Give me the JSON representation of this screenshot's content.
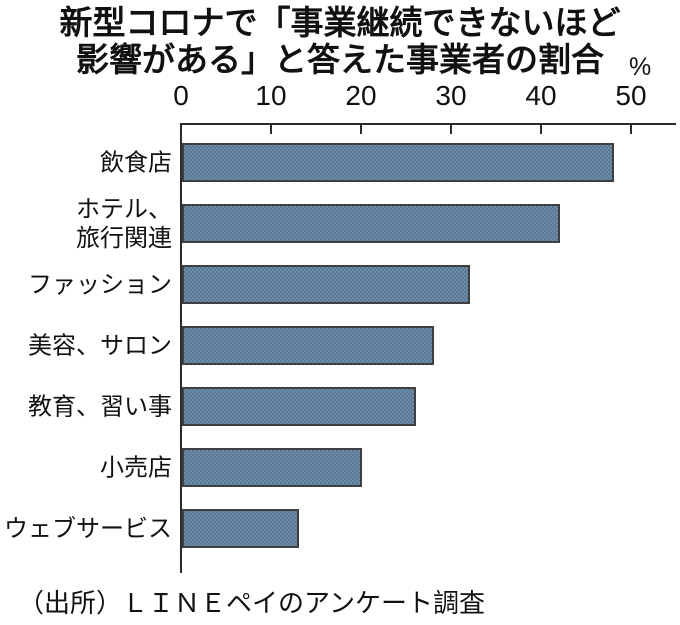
{
  "chart_data": {
    "type": "bar",
    "orientation": "horizontal",
    "title_lines": [
      "新型コロナで「事業継続できないほど",
      "影響がある」と答えた事業者の割合"
    ],
    "unit_label": "%",
    "categories": [
      [
        "飲食店"
      ],
      [
        "ホテル、",
        "旅行関連"
      ],
      [
        "ファッション"
      ],
      [
        "美容、サロン"
      ],
      [
        "教育、習い事"
      ],
      [
        "小売店"
      ],
      [
        "ウェブサービス"
      ]
    ],
    "values": [
      48,
      42,
      32,
      28,
      26,
      20,
      13
    ],
    "x_axis": {
      "min": 0,
      "max": 50,
      "ticks": [
        0,
        10,
        20,
        30,
        40,
        50
      ],
      "position": "top"
    },
    "grid": false,
    "legend": false,
    "source": "（出所）ＬＩＮＥペイのアンケート調査",
    "colors": {
      "bar_fill_dark": "#57799a",
      "bar_fill_light": "#6f8ba3",
      "bar_border": "#3f3f3f",
      "axis": "#2b2b2b",
      "text": "#111111",
      "background": "#ffffff"
    }
  }
}
